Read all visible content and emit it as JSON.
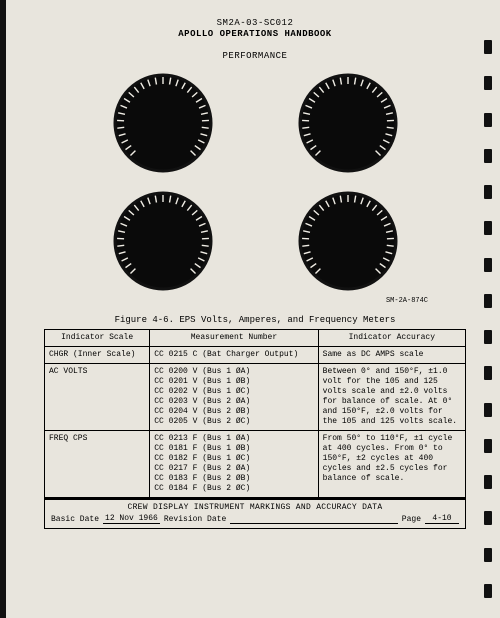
{
  "header": {
    "doc_num": "SM2A-03-SC012",
    "title": "APOLLO OPERATIONS HANDBOOK",
    "section": "PERFORMANCE"
  },
  "meters": {
    "layout": "2x2",
    "dial": {
      "radius": 48,
      "face_color": "#0a0a0a",
      "case_color": "#111",
      "tick_color": "#efece4",
      "tick_count": 28,
      "tick_len": 7,
      "tick_width": 1.4,
      "arc_start_deg": 135,
      "arc_end_deg": 405
    },
    "corner_label": "SM-2A-874C"
  },
  "figure": {
    "caption": "Figure 4-6.  EPS Volts, Amperes, and Frequency Meters"
  },
  "table": {
    "columns": [
      "Indicator Scale",
      "Measurement Number",
      "Indicator Accuracy"
    ],
    "rows": [
      {
        "scale": "CHGR (Inner Scale)",
        "meas": [
          "CC 0215 C (Bat Charger Output)"
        ],
        "acc": "Same as DC AMPS scale"
      },
      {
        "scale": "AC VOLTS",
        "meas": [
          "CC 0200 V (Bus 1 ØA)",
          "CC 0201 V (Bus 1 ØB)",
          "CC 0202 V (Bus 1 ØC)",
          "CC 0203 V (Bus 2 ØA)",
          "CC 0204 V (Bus 2 ØB)",
          "CC 0205 V (Bus 2 ØC)"
        ],
        "acc": "Between 0° and 150°F, ±1.0 volt for the 105 and 125 volts scale and ±2.0 volts for balance of scale.  At 0° and 150°F, ±2.0 volts for the 105 and 125 volts scale."
      },
      {
        "scale": "FREQ CPS",
        "meas": [
          "CC 0213 F (Bus 1 ØA)",
          "CC 0181 F (Bus 1 ØB)",
          "CC 0182 F (Bus 1 ØC)",
          "CC 0217 F (Bus 2 ØA)",
          "CC 0183 F (Bus 2 ØB)",
          "CC 0184 F (Bus 2 ØC)"
        ],
        "acc": "From 50° to 110°F, ±1 cycle at 400 cycles. From 0° to 150°F, ±2 cycles at 400 cycles and ±2.5 cycles for balance of scale."
      }
    ]
  },
  "footer": {
    "title": "CREW DISPLAY INSTRUMENT MARKINGS AND ACCURACY DATA",
    "basic_date_label": "Basic Date",
    "basic_date": "12 Nov 1966",
    "revision_date_label": "Revision Date",
    "revision_date": "",
    "page_label": "Page",
    "page": "4-10"
  },
  "colors": {
    "paper": "#e8e5dd",
    "ink": "#000000",
    "edge": "#111111"
  },
  "punch_count": 16
}
